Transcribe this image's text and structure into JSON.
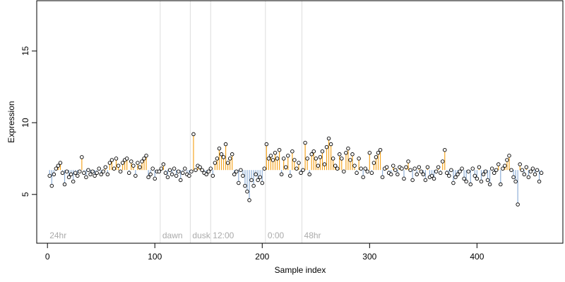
{
  "chart_data": {
    "type": "scatter",
    "title": "",
    "xlabel": "Sample index",
    "ylabel": "Expression",
    "xlim": [
      -10,
      480
    ],
    "ylim": [
      1.6,
      18.5
    ],
    "x_ticks": [
      0,
      100,
      200,
      300,
      400
    ],
    "y_ticks": [
      5,
      10,
      15
    ],
    "grid": false,
    "legend": null,
    "colors": {
      "point_fill": "#ffffff",
      "point_stroke": "#000000",
      "high_stick": "#f5a623",
      "low_stick": "#8fb0d8",
      "phase_line": "#dddddd",
      "phase_text": "#aaaaaa"
    },
    "phase_markers": [
      {
        "x": 0,
        "label": "24hr"
      },
      {
        "x": 105,
        "label": "dawn"
      },
      {
        "x": 133,
        "label": "dusk"
      },
      {
        "x": 152,
        "label": "12:00"
      },
      {
        "x": 203,
        "label": "0:00"
      },
      {
        "x": 237,
        "label": "48hr"
      }
    ],
    "baseline": 6.7,
    "x": [
      2,
      4,
      6,
      8,
      10,
      12,
      14,
      16,
      18,
      20,
      22,
      24,
      26,
      28,
      30,
      32,
      34,
      36,
      38,
      40,
      42,
      44,
      46,
      48,
      50,
      52,
      54,
      56,
      58,
      60,
      62,
      64,
      66,
      68,
      70,
      72,
      74,
      76,
      78,
      80,
      82,
      84,
      86,
      88,
      90,
      92,
      94,
      96,
      98,
      100,
      102,
      104,
      106,
      108,
      110,
      112,
      114,
      116,
      118,
      120,
      122,
      124,
      126,
      128,
      130,
      132,
      134,
      136,
      138,
      140,
      142,
      144,
      146,
      148,
      150,
      152,
      154,
      156,
      158,
      160,
      162,
      164,
      166,
      168,
      170,
      172,
      174,
      176,
      178,
      180,
      182,
      184,
      186,
      188,
      190,
      192,
      194,
      196,
      198,
      200,
      202,
      204,
      206,
      208,
      210,
      212,
      214,
      216,
      218,
      220,
      222,
      224,
      226,
      228,
      230,
      232,
      234,
      236,
      238,
      240,
      242,
      244,
      246,
      248,
      250,
      252,
      254,
      256,
      258,
      260,
      262,
      264,
      266,
      268,
      270,
      272,
      274,
      276,
      278,
      280,
      282,
      284,
      286,
      288,
      290,
      292,
      294,
      296,
      298,
      300,
      302,
      304,
      306,
      308,
      310,
      312,
      314,
      316,
      318,
      320,
      322,
      324,
      326,
      328,
      330,
      332,
      334,
      336,
      338,
      340,
      342,
      344,
      346,
      348,
      350,
      352,
      354,
      356,
      358,
      360,
      362,
      364,
      366,
      368,
      370,
      372,
      374,
      376,
      378,
      380,
      382,
      384,
      386,
      388,
      390,
      392,
      394,
      396,
      398,
      400,
      402,
      404,
      406,
      408,
      410,
      412,
      414,
      416,
      418,
      420,
      422,
      424,
      426,
      428,
      430,
      432,
      434,
      436,
      438,
      440,
      442,
      444,
      446,
      448,
      450,
      452,
      454,
      456,
      458,
      460
    ],
    "y": [
      6.3,
      5.6,
      6.4,
      6.8,
      7.0,
      7.2,
      6.5,
      5.7,
      6.6,
      6.2,
      6.4,
      5.9,
      6.5,
      6.3,
      6.6,
      7.6,
      6.5,
      6.2,
      6.7,
      6.4,
      6.6,
      6.3,
      6.5,
      6.8,
      6.4,
      6.6,
      6.9,
      6.4,
      7.2,
      7.4,
      6.8,
      7.5,
      7.0,
      6.6,
      7.2,
      7.4,
      7.5,
      6.5,
      7.3,
      7.0,
      6.3,
      7.2,
      6.9,
      7.3,
      7.5,
      7.7,
      6.2,
      6.4,
      6.8,
      6.1,
      6.6,
      6.6,
      6.8,
      7.1,
      6.5,
      6.2,
      6.7,
      6.4,
      6.8,
      6.3,
      6.6,
      6.0,
      6.5,
      6.8,
      6.4,
      6.3,
      6.6,
      9.2,
      6.7,
      7.0,
      6.9,
      6.7,
      6.5,
      6.4,
      6.6,
      6.8,
      6.3,
      7.2,
      7.5,
      8.2,
      7.8,
      7.6,
      8.5,
      7.2,
      7.5,
      7.8,
      6.4,
      6.6,
      5.8,
      6.7,
      6.3,
      5.6,
      5.2,
      4.6,
      6.0,
      5.6,
      6.4,
      6.0,
      6.2,
      5.8,
      6.8,
      8.5,
      7.5,
      7.7,
      7.4,
      7.9,
      7.5,
      8.1,
      6.4,
      7.5,
      6.9,
      7.7,
      6.3,
      8.0,
      7.4,
      6.8,
      7.2,
      6.5,
      6.7,
      8.6,
      7.5,
      6.4,
      7.8,
      8.0,
      7.5,
      7.0,
      7.6,
      8.0,
      7.1,
      8.3,
      8.9,
      8.5,
      7.5,
      7.0,
      6.8,
      7.8,
      7.5,
      6.6,
      7.9,
      8.2,
      7.4,
      7.8,
      7.0,
      6.5,
      7.5,
      6.8,
      6.2,
      6.8,
      6.6,
      7.9,
      6.5,
      7.2,
      7.6,
      7.9,
      8.1,
      6.2,
      6.8,
      6.9,
      6.5,
      6.4,
      7.0,
      6.7,
      6.4,
      6.9,
      6.8,
      6.1,
      6.9,
      7.3,
      6.7,
      6.0,
      6.8,
      6.4,
      6.9,
      6.6,
      6.4,
      6.0,
      6.9,
      6.2,
      6.3,
      6.1,
      6.6,
      6.9,
      6.5,
      7.3,
      8.1,
      6.5,
      6.3,
      6.7,
      5.8,
      6.2,
      6.4,
      6.6,
      6.8,
      6.1,
      5.9,
      6.6,
      5.7,
      6.8,
      6.3,
      6.1,
      6.9,
      5.9,
      6.4,
      6.6,
      6.0,
      5.7,
      6.8,
      6.5,
      6.7,
      7.1,
      5.7,
      6.8,
      7.0,
      7.4,
      7.7,
      6.7,
      6.2,
      5.9,
      4.3,
      7.1,
      6.7,
      6.4,
      6.9,
      6.2,
      6.6,
      6.8,
      6.4,
      6.7,
      5.9,
      6.5
    ]
  }
}
